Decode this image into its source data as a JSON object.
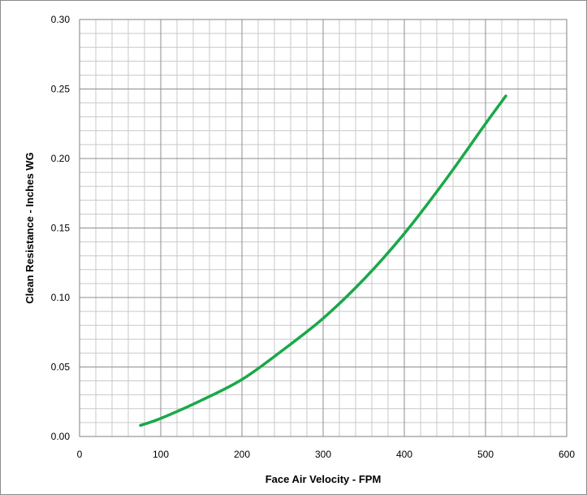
{
  "chart_data": {
    "type": "line",
    "title": "",
    "xlabel": "Face Air Velocity - FPM",
    "ylabel": "Clean Resistance - Inches WG",
    "xlim": [
      0,
      600
    ],
    "ylim": [
      0,
      0.3
    ],
    "x_ticks": [
      "0",
      "100",
      "200",
      "300",
      "400",
      "500",
      "600"
    ],
    "y_ticks": [
      "0.00",
      "0.05",
      "0.10",
      "0.15",
      "0.20",
      "0.25",
      "0.30"
    ],
    "grid": true,
    "legend": "none",
    "series": [
      {
        "color": "#1aa84a",
        "x": [
          75,
          100,
          150,
          200,
          250,
          300,
          350,
          400,
          450,
          500,
          525
        ],
        "y": [
          0.008,
          0.013,
          0.026,
          0.041,
          0.062,
          0.085,
          0.113,
          0.146,
          0.184,
          0.225,
          0.245
        ]
      }
    ]
  }
}
